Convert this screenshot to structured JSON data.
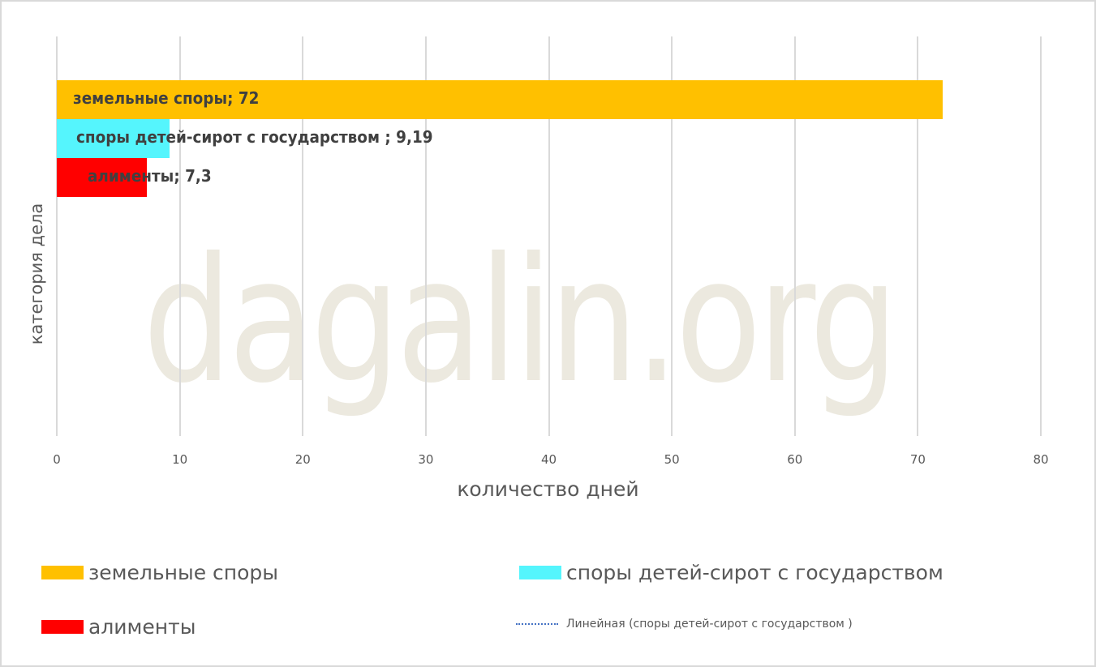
{
  "chart_data": {
    "type": "bar",
    "orientation": "horizontal",
    "title": "",
    "xlabel": "количество дней",
    "ylabel": "категория дела",
    "xlim": [
      0,
      80
    ],
    "x_ticks": [
      "0",
      "10",
      "20",
      "30",
      "40",
      "50",
      "60",
      "70",
      "80"
    ],
    "grid": true,
    "legend_position": "bottom",
    "categories": [
      "земельные споры",
      "споры детей-сирот с государством",
      "алименты"
    ],
    "series": [
      {
        "name": "земельные споры",
        "values": [
          72
        ],
        "color": "#ffc000",
        "label": "земельные споры; 72"
      },
      {
        "name": "споры детей-сирот с государством",
        "values": [
          9.19
        ],
        "color": "#55f5fd",
        "label": "споры детей-сирот с государством ; 9,19"
      },
      {
        "name": "алименты",
        "values": [
          7.3
        ],
        "color": "#ff0000",
        "label": "алименты; 7,3"
      }
    ],
    "trendline": {
      "name": "Линейная (споры детей-сирот с государством )",
      "style": "dotted",
      "color": "#4472c4"
    },
    "watermark": "dagalin.org"
  },
  "legend": {
    "items": [
      {
        "label": "земельные споры",
        "color": "#ffc000"
      },
      {
        "label": "споры детей-сирот с государством",
        "color": "#55f5fd"
      },
      {
        "label": "алименты",
        "color": "#ff0000"
      },
      {
        "label": "Линейная (споры детей-сирот с государством )",
        "color": "#4472c4"
      }
    ]
  }
}
